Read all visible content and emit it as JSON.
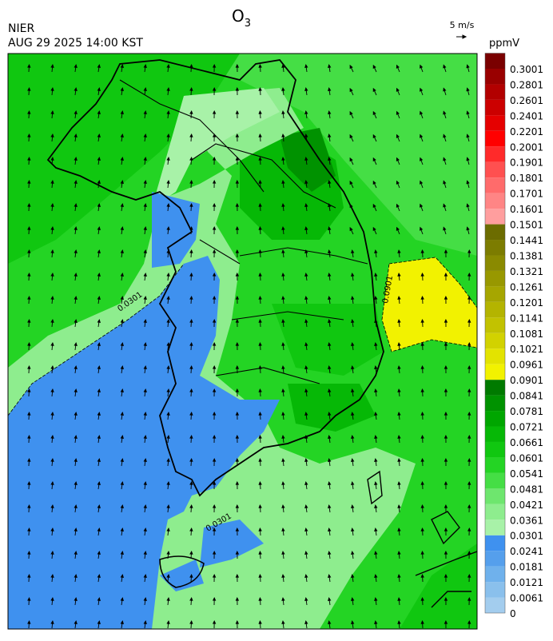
{
  "header": {
    "agency": "NIER",
    "timestamp": "AUG 29 2025 14:00 KST",
    "title": {
      "base": "O",
      "subscript": "3"
    }
  },
  "wind_legend": {
    "label": "5 m/s"
  },
  "colorbar": {
    "unit": "ppmV",
    "labels": [
      "0",
      "0.0061",
      "0.0121",
      "0.0181",
      "0.0241",
      "0.0301",
      "0.0361",
      "0.0421",
      "0.0481",
      "0.0541",
      "0.0601",
      "0.0661",
      "0.0721",
      "0.0781",
      "0.0841",
      "0.0901",
      "0.0961",
      "0.1021",
      "0.1081",
      "0.1141",
      "0.1201",
      "0.1261",
      "0.1321",
      "0.1381",
      "0.1441",
      "0.1501",
      "0.1601",
      "0.1701",
      "0.1801",
      "0.1901",
      "0.2001",
      "0.2201",
      "0.2401",
      "0.2601",
      "0.2801",
      "0.3001"
    ],
    "colors": [
      "#a3cdee",
      "#8ac0ec",
      "#6fb1ec",
      "#559fec",
      "#3f91ef",
      "#a8f2a8",
      "#8eed8e",
      "#6ee66e",
      "#45de45",
      "#24d424",
      "#10c710",
      "#06b806",
      "#00a600",
      "#009200",
      "#007a00",
      "#f2f200",
      "#e3e300",
      "#d2d200",
      "#c2c200",
      "#b4b400",
      "#a6a600",
      "#989800",
      "#8a8a00",
      "#7c7c00",
      "#6c6c00",
      "#ff9e9e",
      "#ff8585",
      "#ff6b6b",
      "#ff5050",
      "#ff2a2a",
      "#ff0000",
      "#e50000",
      "#cc0000",
      "#b20000",
      "#990000",
      "#7a0000"
    ]
  },
  "contour_labels": [
    "0.0301",
    "0.0901"
  ]
}
